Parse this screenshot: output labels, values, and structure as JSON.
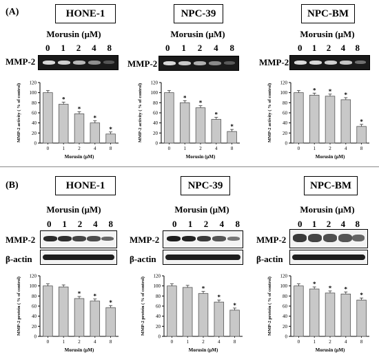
{
  "panels": [
    {
      "letter": "(A)",
      "xlabel": "Morusin (μM)",
      "ylabel": "MMP-2 activity ( % of control)",
      "blot_labels": [
        "MMP-2"
      ],
      "cells": [
        {
          "name": "HONE-1",
          "header": "Morusin (μM)",
          "lanes": [
            "0",
            "1",
            "2",
            "4",
            "8"
          ]
        },
        {
          "name": "NPC-39",
          "header": "Morusin (μM)",
          "lanes": [
            "0",
            "1",
            "2",
            "4",
            "8"
          ]
        },
        {
          "name": "NPC-BM",
          "header": "Morusin (μM)",
          "lanes": [
            "0",
            "1",
            "2",
            "4",
            "8"
          ]
        }
      ]
    },
    {
      "letter": "(B)",
      "xlabel": "Morusin (μM)",
      "ylabel": "MMP-2 protein ( % of control)",
      "blot_labels": [
        "MMP-2",
        "β-actin"
      ],
      "cells": [
        {
          "name": "HONE-1",
          "header": "Morusin (μM)",
          "lanes": [
            "0",
            "1",
            "2",
            "4",
            "8"
          ]
        },
        {
          "name": "NPC-39",
          "header": "Morusin (μM)",
          "lanes": [
            "0",
            "1",
            "2",
            "4",
            "8"
          ]
        },
        {
          "name": "NPC-BM",
          "header": "Morusin (μM)",
          "lanes": [
            "0",
            "1",
            "2",
            "4",
            "8"
          ]
        }
      ]
    }
  ],
  "chart_data": [
    {
      "type": "bar",
      "panel": "A",
      "cell": "HONE-1",
      "categories": [
        "0",
        "1",
        "2",
        "4",
        "8"
      ],
      "values": [
        100,
        77,
        58,
        40,
        18
      ],
      "significant": [
        false,
        true,
        true,
        true,
        true
      ],
      "ylim": [
        0,
        120
      ],
      "yticks": [
        0,
        20,
        40,
        60,
        80,
        100,
        120
      ],
      "xlabel": "Morusin (μM)",
      "ylabel": "MMP-2 activity ( % of control)",
      "bar_color": "#c8c8c8"
    },
    {
      "type": "bar",
      "panel": "A",
      "cell": "NPC-39",
      "categories": [
        "0",
        "1",
        "2",
        "4",
        "8"
      ],
      "values": [
        100,
        80,
        70,
        47,
        23
      ],
      "significant": [
        false,
        true,
        true,
        true,
        true
      ],
      "ylim": [
        0,
        120
      ],
      "yticks": [
        0,
        20,
        40,
        60,
        80,
        100,
        120
      ],
      "xlabel": "Morusin (μM)",
      "ylabel": "MMP-2 activity ( % of control)",
      "bar_color": "#c8c8c8"
    },
    {
      "type": "bar",
      "panel": "A",
      "cell": "NPC-BM",
      "categories": [
        "0",
        "1",
        "2",
        "4",
        "8"
      ],
      "values": [
        100,
        95,
        93,
        86,
        33
      ],
      "significant": [
        false,
        true,
        true,
        true,
        true
      ],
      "ylim": [
        0,
        120
      ],
      "yticks": [
        0,
        20,
        40,
        60,
        80,
        100,
        120
      ],
      "xlabel": "Morusin (μM)",
      "ylabel": "MMP-2 activity ( % of control)",
      "bar_color": "#c8c8c8"
    },
    {
      "type": "bar",
      "panel": "B",
      "cell": "HONE-1",
      "categories": [
        "0",
        "1",
        "2",
        "4",
        "8"
      ],
      "values": [
        100,
        98,
        75,
        70,
        57
      ],
      "significant": [
        false,
        false,
        true,
        true,
        true
      ],
      "ylim": [
        0,
        120
      ],
      "yticks": [
        0,
        20,
        40,
        60,
        80,
        100,
        120
      ],
      "xlabel": "Morusin (μM)",
      "ylabel": "MMP-2 protein ( % of control)",
      "bar_color": "#c8c8c8"
    },
    {
      "type": "bar",
      "panel": "B",
      "cell": "NPC-39",
      "categories": [
        "0",
        "1",
        "2",
        "4",
        "8"
      ],
      "values": [
        100,
        97,
        85,
        68,
        52
      ],
      "significant": [
        false,
        false,
        true,
        true,
        true
      ],
      "ylim": [
        0,
        120
      ],
      "yticks": [
        0,
        20,
        40,
        60,
        80,
        100,
        120
      ],
      "xlabel": "Morusin (μM)",
      "ylabel": "MMP-2 protein ( % of control)",
      "bar_color": "#c8c8c8"
    },
    {
      "type": "bar",
      "panel": "B",
      "cell": "NPC-BM",
      "categories": [
        "0",
        "1",
        "2",
        "4",
        "8"
      ],
      "values": [
        100,
        94,
        86,
        84,
        72
      ],
      "significant": [
        false,
        true,
        true,
        true,
        true
      ],
      "ylim": [
        0,
        120
      ],
      "yticks": [
        0,
        20,
        40,
        60,
        80,
        100,
        120
      ],
      "xlabel": "Morusin (μM)",
      "ylabel": "MMP-2 protein ( % of control)",
      "bar_color": "#c8c8c8"
    }
  ],
  "significance_marker": "*"
}
